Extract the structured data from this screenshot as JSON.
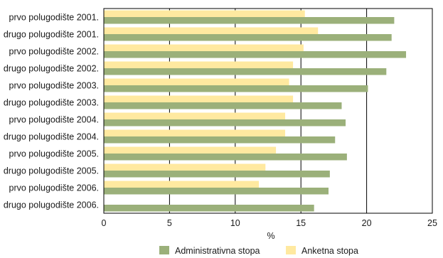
{
  "chart_data": {
    "type": "bar",
    "orientation": "horizontal",
    "categories": [
      "prvo polugodište 2001.",
      "drugo polugodište 2001.",
      "prvo polugodište 2002.",
      "drugo polugodište 2002.",
      "prvo polugodište 2003.",
      "drugo polugodište 2003.",
      "prvo polugodište 2004.",
      "drugo polugodište 2004.",
      "prvo polugodište 2005.",
      "drugo polugodište 2005.",
      "prvo polugodište 2006.",
      "drugo polugodište 2006."
    ],
    "series": [
      {
        "name": "Anketna stopa",
        "color": "#ffe9a0",
        "values": [
          15.3,
          16.3,
          15.2,
          14.4,
          14.1,
          14.4,
          13.8,
          13.8,
          13.1,
          12.3,
          11.8,
          null
        ]
      },
      {
        "name": "Administrativna stopa",
        "color": "#9bb07a",
        "values": [
          22.1,
          21.9,
          23.0,
          21.5,
          20.1,
          18.1,
          18.4,
          17.6,
          18.5,
          17.2,
          17.1,
          16.0
        ]
      }
    ],
    "xlabel": "%",
    "xlim": [
      0,
      25
    ],
    "xticks": [
      "0",
      "5",
      "10",
      "15",
      "20",
      "25"
    ],
    "grid": true,
    "legend": "bottom"
  }
}
